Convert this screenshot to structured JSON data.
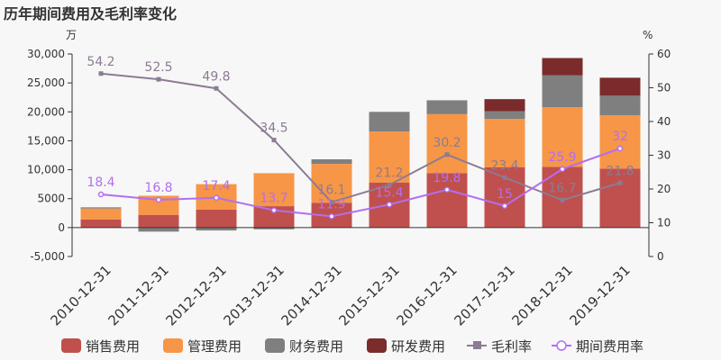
{
  "chart_data": {
    "type": "bar",
    "title": "历年期间费用及毛利率变化",
    "y_left_unit": "万",
    "y_right_unit": "%",
    "ylim_left": [
      -5000,
      30000
    ],
    "ylim_right": [
      0,
      60
    ],
    "y_left_ticks": [
      "30,000",
      "25,000",
      "20,000",
      "15,000",
      "10,000",
      "5000",
      "0",
      "-5,000"
    ],
    "y_left_tick_values": [
      30000,
      25000,
      20000,
      15000,
      10000,
      5000,
      0,
      -5000
    ],
    "y_right_ticks": [
      "60",
      "50",
      "40",
      "30",
      "20",
      "10",
      "0"
    ],
    "y_right_tick_values": [
      60,
      50,
      40,
      30,
      20,
      10,
      0
    ],
    "categories": [
      "2010-12-31",
      "2011-12-31",
      "2012-12-31",
      "2013-12-31",
      "2014-12-31",
      "2015-12-31",
      "2016-12-31",
      "2017-12-31",
      "2018-12-31",
      "2019-12-31"
    ],
    "bar_series": [
      {
        "name": "销售费用",
        "color": "#c0504d",
        "values": [
          1400,
          2200,
          3100,
          3700,
          4300,
          7800,
          9400,
          10400,
          10500,
          10200
        ]
      },
      {
        "name": "管理费用",
        "color": "#f79646",
        "values": [
          1900,
          3300,
          4400,
          5700,
          6700,
          8800,
          10200,
          8400,
          10300,
          9200
        ]
      },
      {
        "name": "财务费用",
        "color": "#7f7f7f",
        "values": [
          200,
          -700,
          -500,
          -300,
          800,
          3400,
          2400,
          1300,
          5500,
          3400
        ]
      },
      {
        "name": "研发费用",
        "color": "#7b2b2b",
        "values": [
          0,
          0,
          0,
          0,
          0,
          0,
          0,
          2100,
          3000,
          3100
        ]
      }
    ],
    "line_series": [
      {
        "name": "毛利率",
        "color": "#8c7b93",
        "marker": "square",
        "values": [
          54.2,
          52.5,
          49.8,
          34.5,
          16.1,
          21.2,
          30.2,
          23.4,
          16.7,
          21.8
        ],
        "labels": [
          "54.2",
          "52.5",
          "49.8",
          "34.5",
          "16.1",
          "21.2",
          "30.2",
          "23.4",
          "16.7",
          "21.8"
        ]
      },
      {
        "name": "期间费用率",
        "color": "#b36ef0",
        "marker": "circle",
        "values": [
          18.4,
          16.8,
          17.4,
          13.7,
          11.9,
          15.4,
          19.8,
          15.0,
          25.9,
          32.0
        ],
        "labels": [
          "18.4",
          "16.8",
          "17.4",
          "13.7",
          "11.9",
          "15.4",
          "19.8",
          "15",
          "25.9",
          "32"
        ]
      }
    ],
    "grid": false,
    "legend_position": "bottom"
  }
}
